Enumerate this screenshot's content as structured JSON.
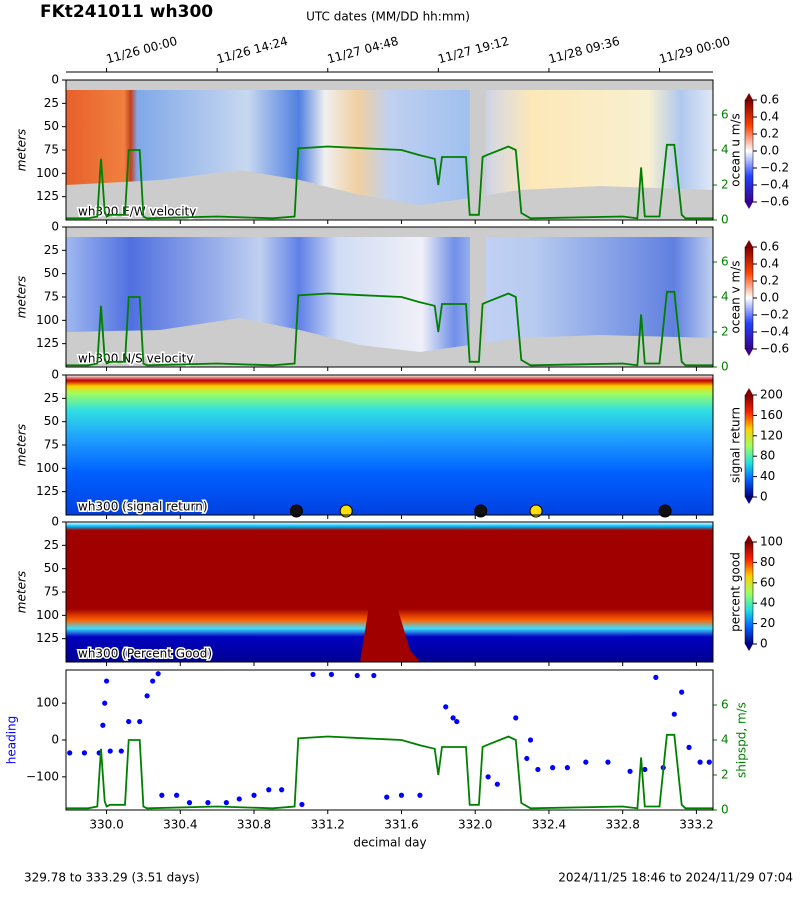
{
  "chart_data": {
    "type": "adcp-panels",
    "title": "FKt241011 wh300",
    "date_axis": {
      "label": "UTC dates (MM/DD hh:mm)",
      "ticks": [
        {
          "value": 330.0,
          "label": "11/26 00:00"
        },
        {
          "value": 330.6,
          "label": "11/26 14:24"
        },
        {
          "value": 331.2,
          "label": "11/27 04:48"
        },
        {
          "value": 331.8,
          "label": "11/27 19:12"
        },
        {
          "value": 332.4,
          "label": "11/28 09:36"
        },
        {
          "value": 333.0,
          "label": "11/29 00:00"
        }
      ]
    },
    "xlabel": "decimal day",
    "xlim": [
      329.78,
      333.29
    ],
    "xticks": [
      {
        "value": 330.0,
        "label": "330.0"
      },
      {
        "value": 330.4,
        "label": "330.4"
      },
      {
        "value": 330.8,
        "label": "330.8"
      },
      {
        "value": 331.2,
        "label": "331.2"
      },
      {
        "value": 331.6,
        "label": "331.6"
      },
      {
        "value": 332.0,
        "label": "332.0"
      },
      {
        "value": 332.4,
        "label": "332.4"
      },
      {
        "value": 332.8,
        "label": "332.8"
      },
      {
        "value": 333.2,
        "label": "333.2"
      }
    ],
    "shipspd": {
      "color": "#008000",
      "x": [
        329.78,
        329.9,
        329.95,
        329.97,
        329.99,
        330.0,
        330.02,
        330.1,
        330.12,
        330.18,
        330.2,
        330.22,
        330.6,
        330.9,
        331.02,
        331.04,
        331.2,
        331.4,
        331.6,
        331.7,
        331.78,
        331.8,
        331.82,
        331.95,
        331.97,
        332.02,
        332.04,
        332.06,
        332.18,
        332.22,
        332.25,
        332.3,
        332.8,
        332.88,
        332.9,
        332.92,
        333.0,
        333.04,
        333.08,
        333.12,
        333.14,
        333.29
      ],
      "values": [
        0.1,
        0.1,
        0.2,
        3.5,
        0.5,
        0.2,
        0.3,
        0.3,
        4,
        4,
        0.2,
        0.1,
        0.2,
        0.1,
        0.2,
        4.1,
        4.2,
        4.1,
        4,
        3.7,
        3.5,
        2,
        3.6,
        3.6,
        0.3,
        0.3,
        3.6,
        3.7,
        4.2,
        4,
        0.4,
        0.1,
        0.2,
        0.1,
        3,
        0.2,
        0.2,
        4.3,
        4.3,
        0.3,
        0.1,
        0.1
      ]
    },
    "panels": [
      {
        "type": "heatmap",
        "label": "wh300  E/W velocity",
        "ylabel": "meters",
        "ylim": [
          150,
          0
        ],
        "yticks": [
          0,
          25,
          50,
          75,
          100,
          125
        ],
        "colorbar": {
          "label": "ocean u m/s",
          "clim": [
            -0.6,
            0.6
          ],
          "colors": [
            "#3b0090",
            "#2040ff",
            "#ffffff",
            "#ff4000",
            "#800000"
          ],
          "ticks": [
            {
              "value": 0.6,
              "label": "0.6"
            },
            {
              "value": 0.4,
              "label": "0.4"
            },
            {
              "value": 0.2,
              "label": "0.2"
            },
            {
              "value": 0.0,
              "label": "0.0"
            },
            {
              "value": -0.2,
              "label": "−0.2"
            },
            {
              "value": -0.4,
              "label": "−0.4"
            },
            {
              "value": -0.6,
              "label": "−0.6"
            }
          ]
        },
        "y2lim": [
          0,
          8
        ],
        "y2ticks": [
          0,
          2,
          4,
          6
        ]
      },
      {
        "type": "heatmap",
        "label": "wh300  N/S velocity",
        "ylabel": "meters",
        "ylim": [
          150,
          0
        ],
        "yticks": [
          0,
          25,
          50,
          75,
          100,
          125
        ],
        "colorbar": {
          "label": "ocean v m/s",
          "clim": [
            -0.6,
            0.6
          ],
          "colors": [
            "#3b0090",
            "#2040ff",
            "#ffffff",
            "#ff4000",
            "#800000"
          ],
          "ticks": [
            {
              "value": 0.6,
              "label": "0.6"
            },
            {
              "value": 0.4,
              "label": "0.4"
            },
            {
              "value": 0.2,
              "label": "0.2"
            },
            {
              "value": 0.0,
              "label": "0.0"
            },
            {
              "value": -0.2,
              "label": "−0.2"
            },
            {
              "value": -0.4,
              "label": "−0.4"
            },
            {
              "value": -0.6,
              "label": "−0.6"
            }
          ]
        },
        "y2lim": [
          0,
          8
        ],
        "y2ticks": [
          0,
          2,
          4,
          6
        ]
      },
      {
        "type": "heatmap",
        "label": "wh300 (signal return)",
        "ylabel": "meters",
        "ylim": [
          150,
          0
        ],
        "yticks": [
          0,
          25,
          50,
          75,
          100,
          125
        ],
        "colorbar": {
          "label": "signal return",
          "clim": [
            0,
            200
          ],
          "colors": [
            "#000080",
            "#0060ff",
            "#20e0e0",
            "#a0ff60",
            "#ffd000",
            "#ff2000",
            "#800000"
          ],
          "ticks": [
            0,
            40,
            80,
            120,
            160,
            200
          ]
        },
        "markers": {
          "x": [
            331.03,
            331.3,
            332.03,
            332.33,
            333.03
          ],
          "colors": [
            "#111111",
            "#ffe000",
            "#111111",
            "#ffe000",
            "#111111"
          ]
        }
      },
      {
        "type": "heatmap",
        "label": "wh300 (Percent Good)",
        "ylabel": "meters",
        "ylim": [
          150,
          0
        ],
        "yticks": [
          0,
          25,
          50,
          75,
          100,
          125
        ],
        "colorbar": {
          "label": "percent good",
          "clim": [
            0,
            100
          ],
          "colors": [
            "#000080",
            "#0060ff",
            "#20e0e0",
            "#a0ff60",
            "#ffd000",
            "#ff2000",
            "#800000"
          ],
          "ticks": [
            0,
            20,
            40,
            60,
            80,
            100
          ]
        }
      },
      {
        "type": "scatter",
        "ylabel": "heading",
        "y2label": "shipspd, m/s",
        "color": "#0000ff",
        "ylim": [
          -190,
          190
        ],
        "yticks": [
          100,
          0,
          {
            "value": -100,
            "label": "−100"
          }
        ],
        "y2lim": [
          0,
          8
        ],
        "y2ticks": [
          0,
          2,
          4,
          6
        ],
        "x": [
          329.8,
          329.88,
          329.96,
          329.98,
          329.99,
          330.0,
          330.02,
          330.08,
          330.12,
          330.18,
          330.22,
          330.25,
          330.28,
          330.3,
          330.38,
          330.45,
          330.55,
          330.65,
          330.72,
          330.8,
          330.88,
          330.95,
          331.06,
          331.12,
          331.22,
          331.36,
          331.45,
          331.52,
          331.6,
          331.7,
          331.84,
          331.88,
          331.9,
          332.07,
          332.12,
          332.22,
          332.28,
          332.3,
          332.34,
          332.42,
          332.5,
          332.6,
          332.72,
          332.84,
          332.92,
          332.98,
          333.02,
          333.08,
          333.12,
          333.16,
          333.22,
          333.27
        ],
        "values": [
          -35,
          -35,
          -35,
          40,
          100,
          160,
          -30,
          -30,
          50,
          50,
          120,
          160,
          180,
          -150,
          -150,
          -170,
          -170,
          -170,
          -160,
          -150,
          -135,
          -135,
          -175,
          178,
          178,
          175,
          175,
          -155,
          -150,
          -150,
          90,
          60,
          50,
          -100,
          -120,
          60,
          -50,
          0,
          -80,
          -75,
          -75,
          -60,
          -60,
          -85,
          -80,
          170,
          -75,
          70,
          130,
          -20,
          -60,
          -60
        ]
      }
    ],
    "footer_left": "329.78 to 333.29 (3.51 days)",
    "footer_right": "2024/11/25 18:46 to 2024/11/29 07:04"
  }
}
